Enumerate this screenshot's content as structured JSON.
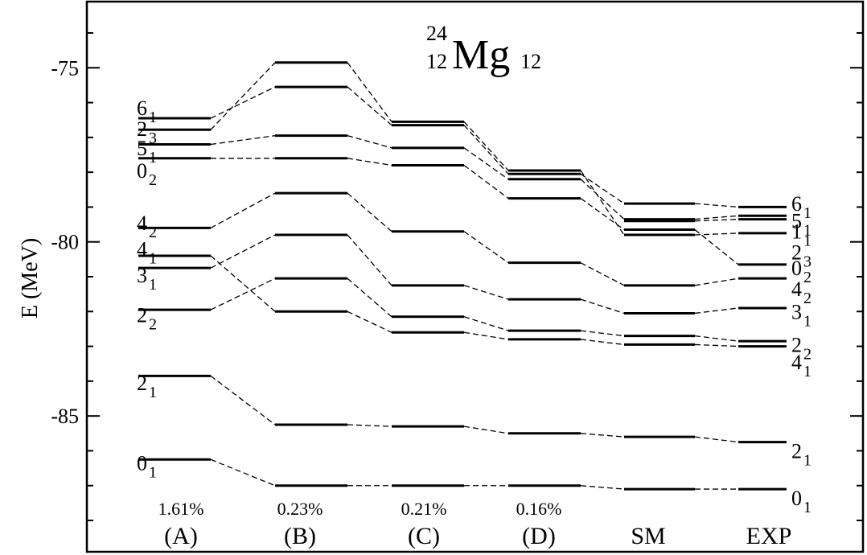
{
  "chart_data": {
    "type": "level-scheme",
    "title": {
      "mass": "24",
      "atomic_number": "12",
      "symbol": "Mg",
      "neutrons": "12"
    },
    "ylabel": "E (MeV)",
    "ylim": [
      -88.9,
      -73.1
    ],
    "yticks": [
      -75,
      -80,
      -85
    ],
    "grid": false,
    "columns": [
      {
        "key": "A",
        "label": "(A)",
        "percent": "1.61%",
        "levels": {
          "6_1": -76.45,
          "2_3": -76.78,
          "5_1": -77.2,
          "0_2": -77.6,
          "4_2": -79.6,
          "4_1": -80.4,
          "3_1": -80.75,
          "2_2": -81.95,
          "2_1": -83.85,
          "0_1": -86.25
        }
      },
      {
        "key": "B",
        "label": "(B)",
        "percent": "0.23%",
        "levels": {
          "2_3": -74.85,
          "6_1": -75.55,
          "5_1": -76.95,
          "0_2": -77.6,
          "4_2": -78.6,
          "3_1": -79.8,
          "2_2": -81.05,
          "4_1": -82.0,
          "2_1": -85.25,
          "0_1": -87.0
        }
      },
      {
        "key": "C",
        "label": "(C)",
        "percent": "0.21%",
        "levels": {
          "2_3": -76.55,
          "6_1": -76.65,
          "5_1": -77.3,
          "0_2": -77.8,
          "4_2": -79.7,
          "3_1": -81.25,
          "2_2": -82.15,
          "4_1": -82.6,
          "2_1": -85.3,
          "0_1": -87.0
        }
      },
      {
        "key": "D",
        "label": "(D)",
        "percent": "0.16%",
        "levels": {
          "2_3": -77.95,
          "6_1": -78.05,
          "5_1": -78.2,
          "0_2": -78.75,
          "4_2": -80.6,
          "3_1": -81.65,
          "2_2": -82.55,
          "4_1": -82.8,
          "2_1": -85.5,
          "0_1": -87.0
        }
      },
      {
        "key": "SM",
        "label": "SM",
        "percent": "",
        "levels": {
          "6_1": -78.9,
          "5_1": -79.35,
          "1_1": -79.4,
          "0_2": -79.65,
          "2_3": -79.8,
          "4_2": -81.25,
          "3_1": -82.05,
          "2_2": -82.7,
          "4_1": -82.95,
          "2_1": -85.6,
          "0_1": -87.1
        }
      },
      {
        "key": "EXP",
        "label": "EXP",
        "percent": "",
        "levels": {
          "6_1": -79.0,
          "5_1": -79.25,
          "1_1": -79.35,
          "2_3": -79.75,
          "0_2": -80.65,
          "4_2": -81.05,
          "3_1": -81.9,
          "2_2": -82.85,
          "4_1": -83.0,
          "2_1": -85.75,
          "0_1": -87.1
        }
      }
    ],
    "state_labels_left": [
      {
        "j": "6",
        "n": "1",
        "y": -76.15
      },
      {
        "j": "2",
        "n": "3",
        "y": -76.75
      },
      {
        "j": "5",
        "n": "1",
        "y": -77.3
      },
      {
        "j": "0",
        "n": "2",
        "y": -77.95
      },
      {
        "j": "4",
        "n": "2",
        "y": -79.45
      },
      {
        "j": "4",
        "n": "1",
        "y": -80.2
      },
      {
        "j": "3",
        "n": "1",
        "y": -80.95
      },
      {
        "j": "2",
        "n": "2",
        "y": -82.1
      },
      {
        "j": "2",
        "n": "1",
        "y": -84.05
      },
      {
        "j": "0",
        "n": "1",
        "y": -86.35
      }
    ],
    "state_labels_right": [
      {
        "j": "6",
        "n": "1",
        "y": -78.9
      },
      {
        "j": "5",
        "n": "1",
        "y": -79.4
      },
      {
        "j": "1",
        "n": "1",
        "y": -79.7
      },
      {
        "j": "2",
        "n": "3",
        "y": -80.3
      },
      {
        "j": "0",
        "n": "2",
        "y": -80.75
      },
      {
        "j": "4",
        "n": "2",
        "y": -81.35
      },
      {
        "j": "3",
        "n": "1",
        "y": -82.0
      },
      {
        "j": "2",
        "n": "2",
        "y": -82.95
      },
      {
        "j": "4",
        "n": "1",
        "y": -83.45
      },
      {
        "j": "2",
        "n": "1",
        "y": -86.0
      },
      {
        "j": "0",
        "n": "1",
        "y": -87.35
      }
    ]
  }
}
